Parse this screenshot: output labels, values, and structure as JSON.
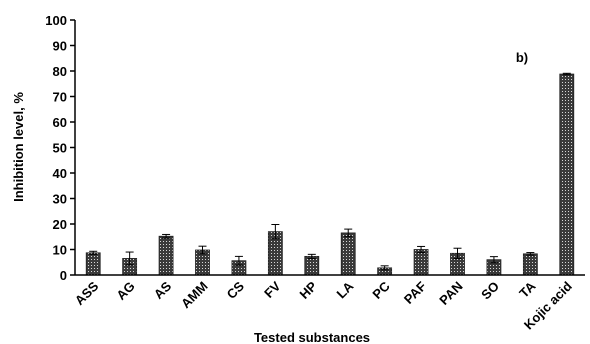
{
  "chart_data": {
    "type": "bar",
    "annotation": "b)",
    "xlabel": "Tested substances",
    "ylabel": "Inhibition level, %",
    "ylim": [
      0,
      100
    ],
    "yticks": [
      0,
      10,
      20,
      30,
      40,
      50,
      60,
      70,
      80,
      90,
      100
    ],
    "grid": false,
    "categories": [
      "ASS",
      "AG",
      "AS",
      "AMM",
      "CS",
      "FV",
      "HP",
      "LA",
      "PC",
      "PAF",
      "PAN",
      "SO",
      "TA",
      "Kojic acid"
    ],
    "values": [
      8.7,
      6.5,
      15.2,
      9.8,
      5.6,
      17.0,
      7.3,
      16.5,
      2.8,
      10.0,
      8.5,
      6.0,
      8.3,
      78.8
    ],
    "errors": [
      0.6,
      2.5,
      0.7,
      1.5,
      1.7,
      2.8,
      0.8,
      1.5,
      0.8,
      1.2,
      2.0,
      1.2,
      0.5,
      0.3
    ],
    "bar_pattern": "dotted-dark",
    "colors": {
      "bar_fill": "#3a3a3a",
      "bar_dots": "#d8d8d8",
      "axis": "#000000"
    }
  }
}
